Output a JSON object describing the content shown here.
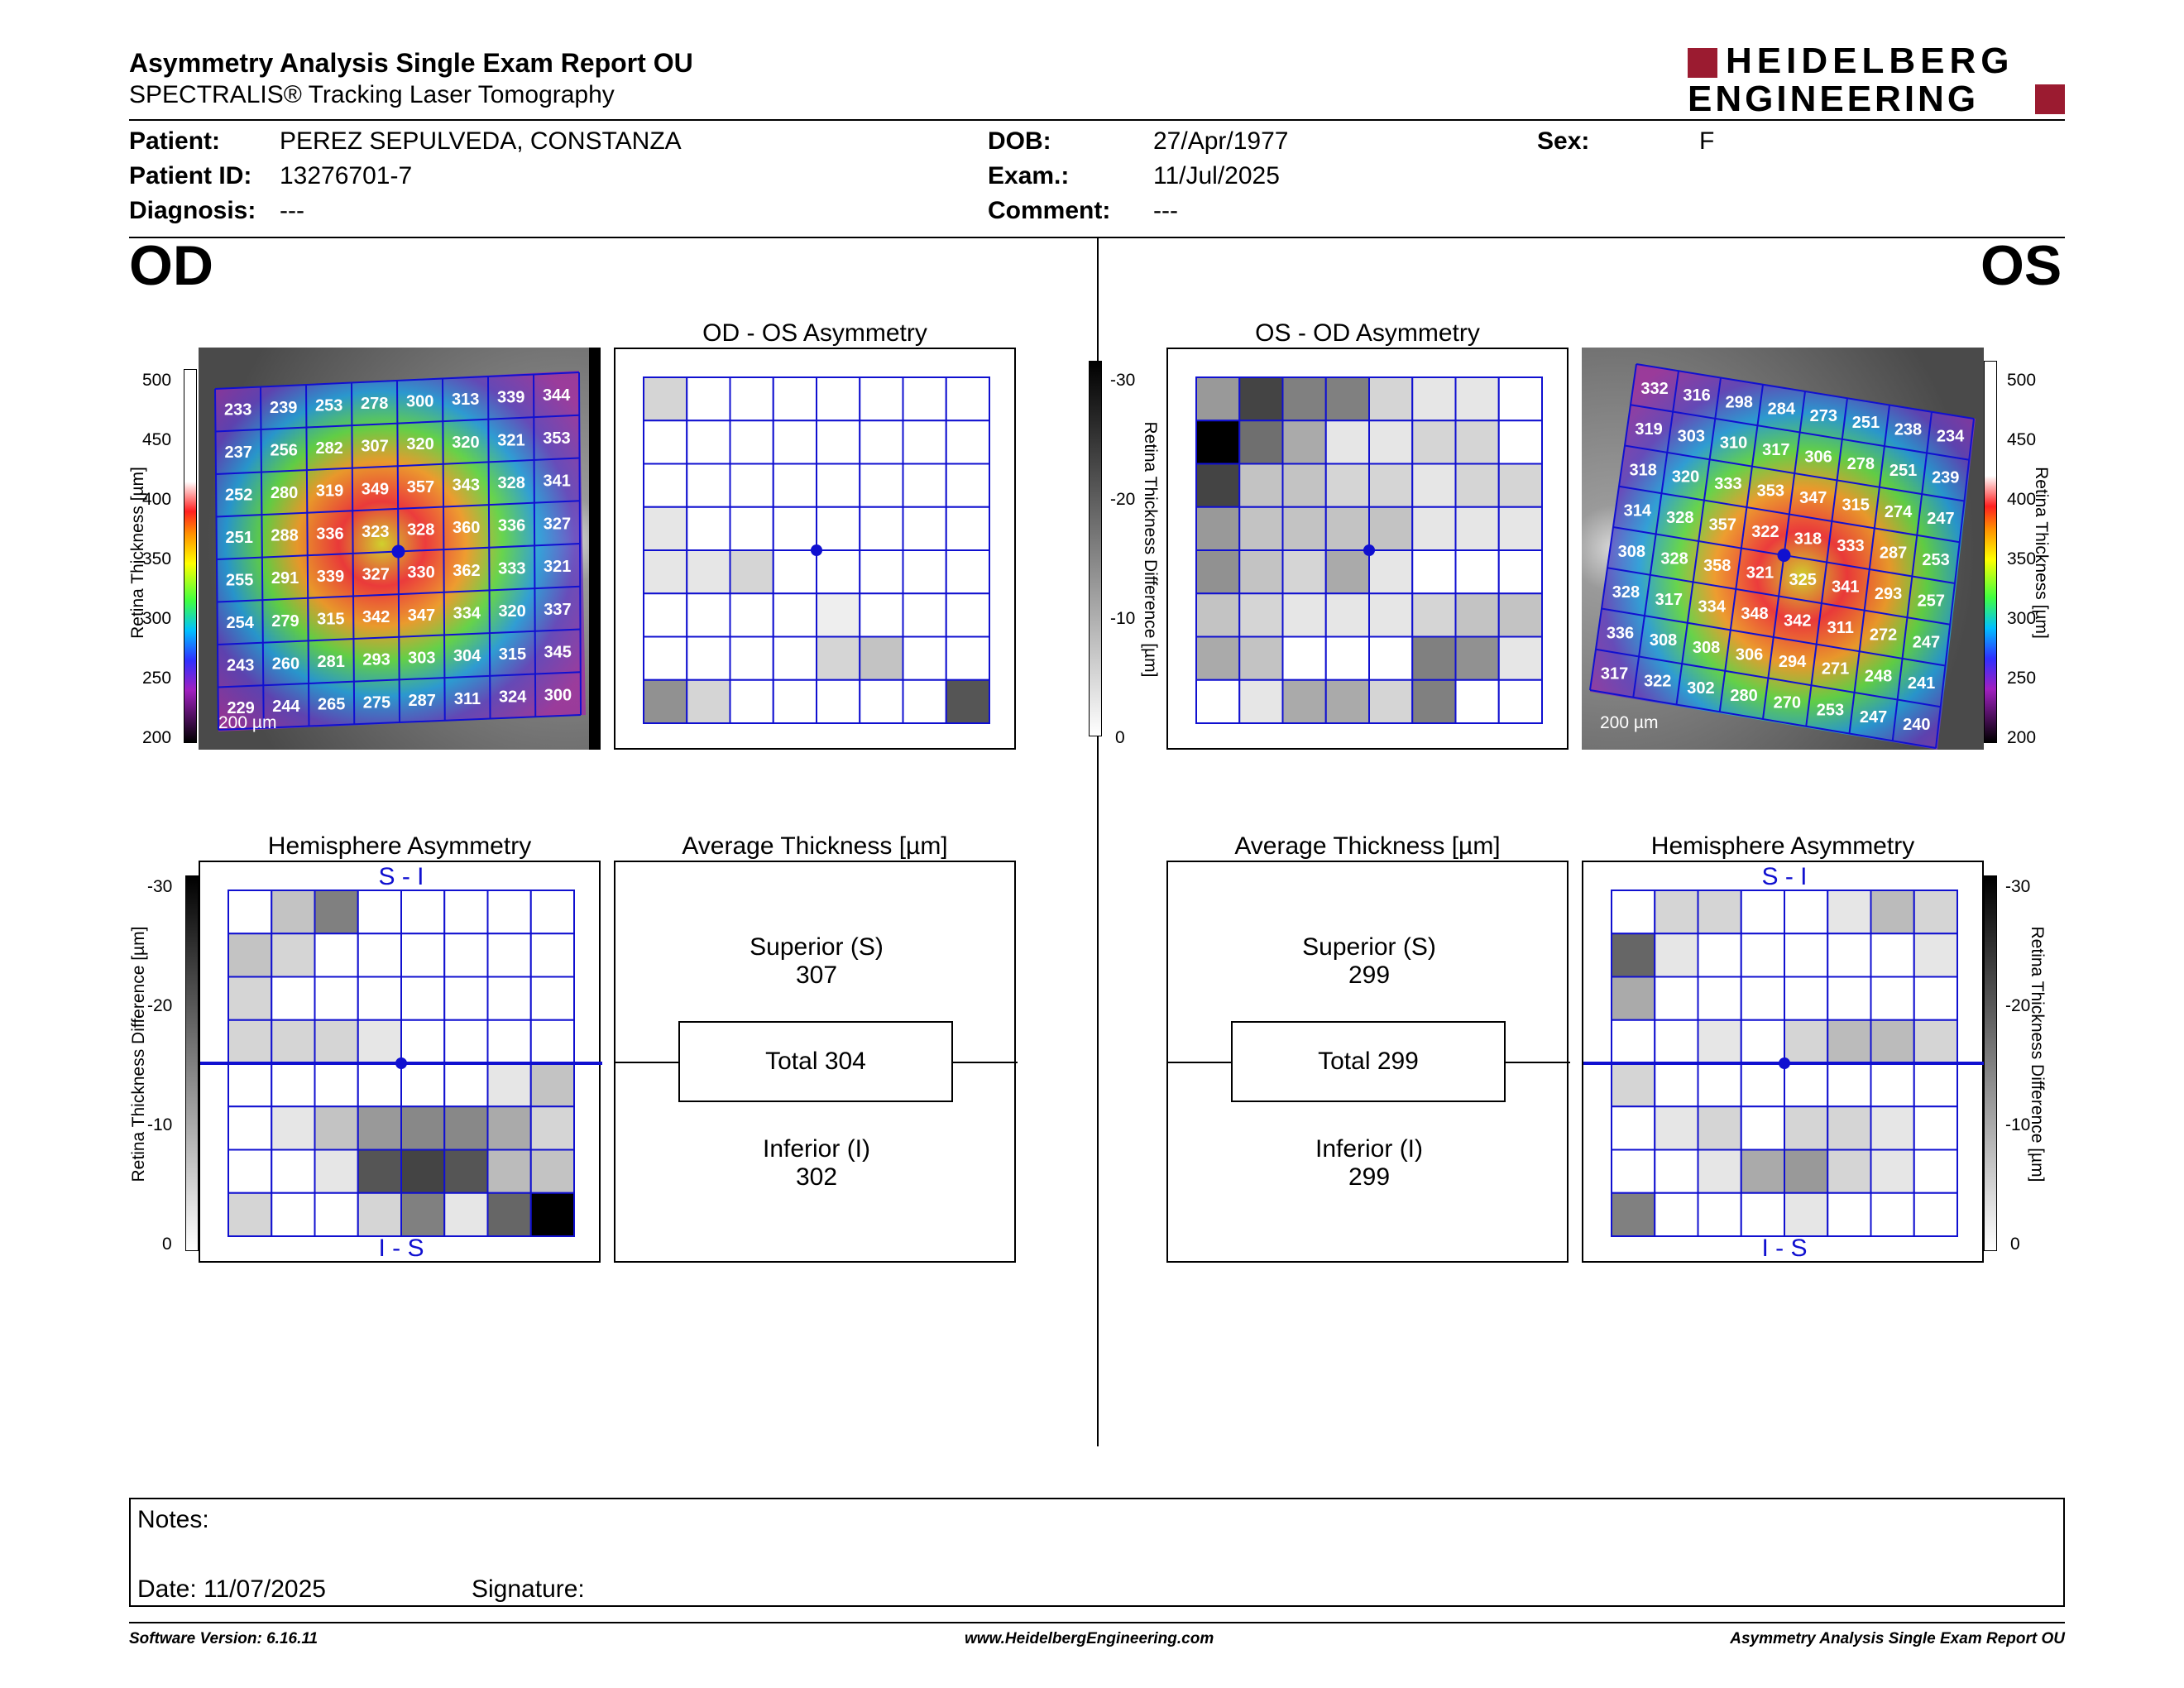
{
  "report": {
    "title": "Asymmetry Analysis Single Exam Report OU",
    "subtitle": "SPECTRALIS® Tracking Laser Tomography",
    "brand_line1": "HEIDELBERG",
    "brand_line2": "ENGINEERING",
    "brand_color": "#9b1b30"
  },
  "patient": {
    "patient_label": "Patient:",
    "patient_value": "PEREZ SEPULVEDA, CONSTANZA",
    "id_label": "Patient ID:",
    "id_value": "13276701-7",
    "diagnosis_label": "Diagnosis:",
    "diagnosis_value": "---",
    "dob_label": "DOB:",
    "dob_value": "27/Apr/1977",
    "exam_label": "Exam.:",
    "exam_value": "11/Jul/2025",
    "comment_label": "Comment:",
    "comment_value": "---",
    "sex_label": "Sex:",
    "sex_value": "F"
  },
  "od": {
    "eye_label": "OD",
    "asym_title": "OD - OS Asymmetry",
    "hemi_title": "Hemisphere Asymmetry",
    "avg_title": "Average Thickness [µm]",
    "superior_label": "Superior (S)",
    "superior_value": "307",
    "total_label": "Total 304",
    "inferior_label": "Inferior (I)",
    "inferior_value": "302",
    "hemi_top": "S - I",
    "hemi_bottom": "I - S",
    "scale_bar": "200 µm",
    "thickness_grid": [
      [
        233,
        239,
        253,
        278,
        300,
        313,
        339,
        344
      ],
      [
        237,
        256,
        282,
        307,
        320,
        320,
        321,
        353
      ],
      [
        252,
        280,
        319,
        349,
        357,
        343,
        328,
        341
      ],
      [
        251,
        288,
        336,
        323,
        328,
        360,
        336,
        327
      ],
      [
        255,
        291,
        339,
        327,
        330,
        362,
        333,
        321
      ],
      [
        254,
        279,
        315,
        342,
        347,
        334,
        320,
        337
      ],
      [
        243,
        260,
        281,
        293,
        303,
        304,
        315,
        345
      ],
      [
        229,
        244,
        265,
        275,
        287,
        311,
        324,
        300
      ]
    ],
    "asym_grid": [
      [
        5,
        0,
        0,
        0,
        0,
        0,
        0,
        0
      ],
      [
        0,
        0,
        0,
        0,
        0,
        0,
        0,
        0
      ],
      [
        0,
        0,
        0,
        0,
        0,
        0,
        0,
        0
      ],
      [
        3,
        0,
        0,
        0,
        0,
        0,
        0,
        0
      ],
      [
        3,
        3,
        5,
        0,
        0,
        0,
        0,
        0
      ],
      [
        0,
        0,
        0,
        0,
        2,
        0,
        0,
        0
      ],
      [
        0,
        0,
        0,
        0,
        5,
        7,
        0,
        0
      ],
      [
        13,
        5,
        0,
        0,
        0,
        0,
        0,
        20
      ]
    ],
    "hemi_grid": [
      [
        0,
        7,
        15,
        0,
        0,
        0,
        0,
        0
      ],
      [
        7,
        5,
        0,
        0,
        0,
        0,
        0,
        0
      ],
      [
        5,
        0,
        0,
        0,
        0,
        0,
        0,
        0
      ],
      [
        5,
        5,
        5,
        3,
        0,
        0,
        0,
        0
      ],
      [
        0,
        0,
        0,
        0,
        0,
        0,
        3,
        7
      ],
      [
        0,
        3,
        7,
        12,
        14,
        14,
        10,
        5
      ],
      [
        0,
        0,
        3,
        20,
        22,
        20,
        8,
        7
      ],
      [
        5,
        0,
        0,
        5,
        15,
        3,
        18,
        30
      ]
    ]
  },
  "os": {
    "eye_label": "OS",
    "asym_title": "OS - OD Asymmetry",
    "hemi_title": "Hemisphere Asymmetry",
    "avg_title": "Average Thickness [µm]",
    "superior_label": "Superior (S)",
    "superior_value": "299",
    "total_label": "Total 299",
    "inferior_label": "Inferior (I)",
    "inferior_value": "299",
    "hemi_top": "S - I",
    "hemi_bottom": "I - S",
    "scale_bar": "200 µm",
    "thickness_grid": [
      [
        332,
        316,
        298,
        284,
        273,
        251,
        238,
        234
      ],
      [
        319,
        303,
        310,
        317,
        306,
        278,
        251,
        239
      ],
      [
        318,
        320,
        333,
        353,
        347,
        315,
        274,
        247
      ],
      [
        314,
        328,
        357,
        322,
        318,
        333,
        287,
        253
      ],
      [
        308,
        328,
        358,
        321,
        325,
        341,
        293,
        257
      ],
      [
        328,
        317,
        334,
        348,
        342,
        311,
        272,
        247
      ],
      [
        336,
        308,
        308,
        306,
        294,
        271,
        248,
        241
      ],
      [
        317,
        322,
        302,
        280,
        270,
        253,
        247,
        240
      ]
    ],
    "asym_grid": [
      [
        12,
        22,
        15,
        15,
        5,
        3,
        3,
        0
      ],
      [
        30,
        17,
        10,
        3,
        3,
        5,
        5,
        0
      ],
      [
        22,
        7,
        7,
        5,
        5,
        3,
        5,
        5
      ],
      [
        12,
        7,
        7,
        7,
        7,
        3,
        3,
        3
      ],
      [
        13,
        7,
        5,
        10,
        3,
        0,
        0,
        0
      ],
      [
        7,
        5,
        3,
        3,
        3,
        5,
        7,
        7
      ],
      [
        10,
        7,
        0,
        0,
        0,
        15,
        13,
        3
      ],
      [
        0,
        3,
        10,
        10,
        5,
        15,
        0,
        0
      ]
    ],
    "hemi_grid": [
      [
        0,
        5,
        5,
        0,
        0,
        3,
        8,
        5
      ],
      [
        18,
        3,
        0,
        0,
        0,
        0,
        0,
        3
      ],
      [
        10,
        0,
        0,
        0,
        0,
        0,
        0,
        0
      ],
      [
        0,
        0,
        3,
        0,
        5,
        8,
        8,
        5
      ],
      [
        5,
        0,
        0,
        0,
        0,
        0,
        0,
        0
      ],
      [
        0,
        3,
        5,
        0,
        5,
        5,
        3,
        0
      ],
      [
        0,
        0,
        3,
        10,
        12,
        5,
        3,
        0
      ],
      [
        15,
        0,
        0,
        0,
        3,
        0,
        0,
        0
      ]
    ]
  },
  "scales": {
    "thickness_title": "Retina Thickness [µm]",
    "thickness_ticks": [
      "500",
      "450",
      "400",
      "350",
      "300",
      "250",
      "200"
    ],
    "diff_title": "Retina Thickness Difference [µm]",
    "diff_ticks": [
      "-30",
      "-20",
      "-10",
      "0"
    ]
  },
  "notes": {
    "notes_label": "Notes:",
    "date_label": "Date: 11/07/2025",
    "signature_label": "Signature:"
  },
  "footer": {
    "software": "Software Version: 6.16.11",
    "website": "www.HeidelbergEngineering.com",
    "report_name": "Asymmetry Analysis Single Exam Report OU"
  }
}
